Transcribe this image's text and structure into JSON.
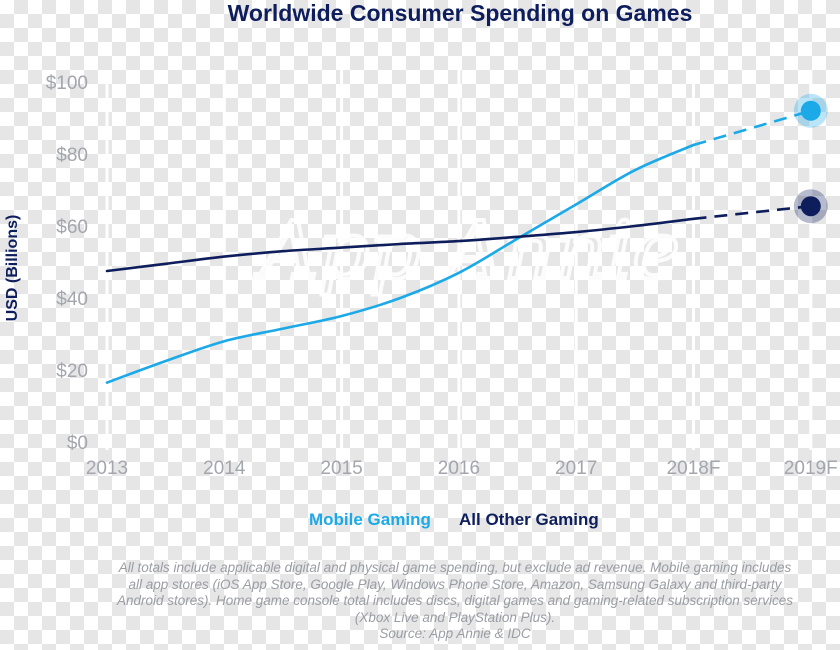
{
  "colors": {
    "mobile": "#1ba9e8",
    "other": "#0e1e5c",
    "title": "#0e1e5c",
    "axis_text": "#a3a6ad",
    "grid": "#ffffff",
    "watermark": "#f1f1f1",
    "footnote": "#9a9da4"
  },
  "watermark": "App Annie",
  "footnote": {
    "lines": [
      "All totals include applicable digital and physical game spending, but exclude ad revenue. Mobile gaming includes",
      "all app stores (iOS App Store, Google Play, Windows Phone Store, Amazon, Samsung Galaxy and third-party",
      "Android stores). Home game console total includes discs, digital games and gaming-related subscription services",
      "(Xbox Live and PlayStation Plus).",
      "Source: App Annie & IDC"
    ]
  },
  "chart_data": {
    "type": "line",
    "title": "Worldwide Consumer Spending on Games",
    "ylabel": "USD (Billions)",
    "xlabel": "",
    "categories": [
      "2013",
      "2014",
      "2015",
      "2016",
      "2017",
      "2018F",
      "2019F"
    ],
    "y_tick_labels": [
      "$0",
      "$20",
      "$40",
      "$60",
      "$80",
      "$100"
    ],
    "y_ticks": [
      0,
      20,
      40,
      60,
      80,
      100
    ],
    "ylim": [
      0,
      100
    ],
    "grid": "vertical",
    "legend_position": "bottom-center",
    "forecast_from_index": 5,
    "forecast_style": "dashed",
    "series": [
      {
        "name": "Mobile Gaming",
        "color": "#1ba9e8",
        "x": [
          0,
          0.5,
          1,
          1.5,
          2,
          2.5,
          3,
          3.5,
          4,
          4.5,
          5,
          6
        ],
        "values": [
          16.5,
          22.5,
          28,
          31.5,
          35,
          40,
          47,
          56.5,
          66,
          75.5,
          82.5,
          92
        ]
      },
      {
        "name": "All Other Gaming",
        "color": "#0e1e5c",
        "x": [
          0,
          0.5,
          1,
          1.5,
          2,
          2.5,
          3,
          3.5,
          4,
          4.5,
          5,
          6
        ],
        "values": [
          47.5,
          49.5,
          51.5,
          53,
          54,
          55,
          55.8,
          57,
          58.3,
          60,
          62,
          65.5
        ]
      }
    ]
  }
}
